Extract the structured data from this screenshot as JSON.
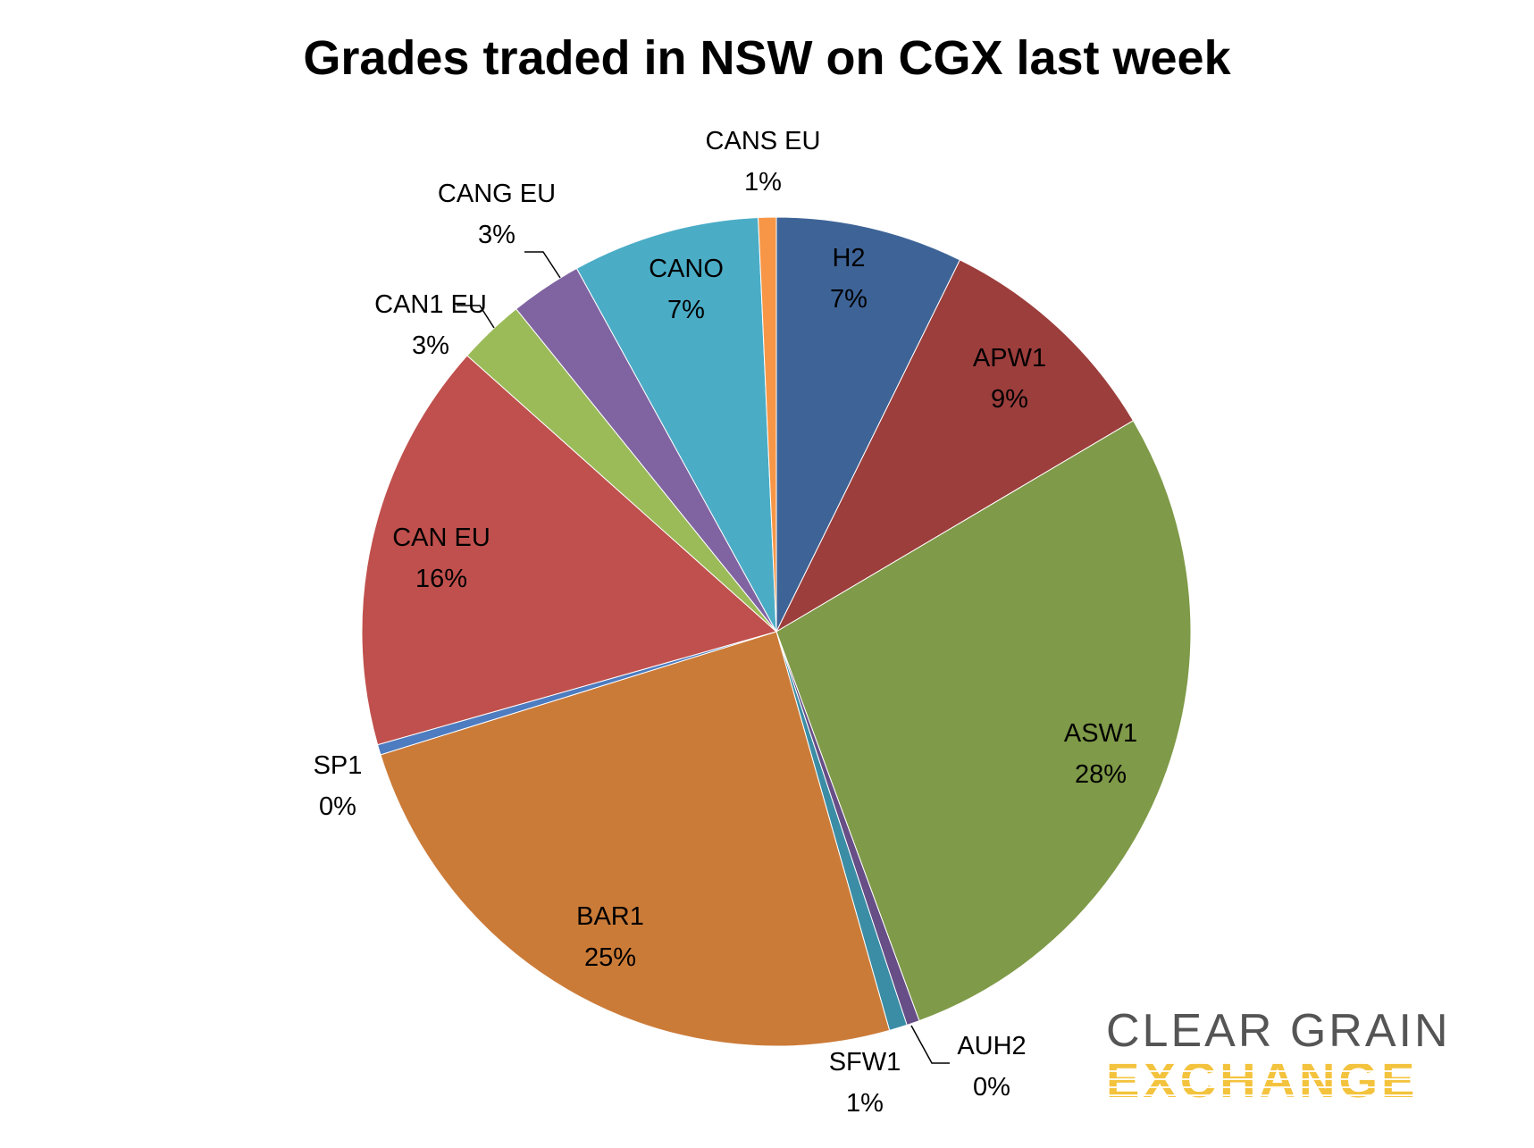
{
  "chart_data": {
    "type": "pie",
    "title": "Grades traded in NSW on CGX last week",
    "slices": [
      {
        "label": "H2",
        "value": 7.3,
        "pct_label": "7%",
        "color": "#3E6497"
      },
      {
        "label": "APW1",
        "value": 9.2,
        "pct_label": "9%",
        "color": "#9C3E3C"
      },
      {
        "label": "ASW1",
        "value": 27.9,
        "pct_label": "28%",
        "color": "#7F9A48"
      },
      {
        "label": "AUH2",
        "value": 0.5,
        "pct_label": "0%",
        "color": "#674E86"
      },
      {
        "label": "SFW1",
        "value": 0.7,
        "pct_label": "1%",
        "color": "#3A8DA5"
      },
      {
        "label": "BAR1",
        "value": 24.6,
        "pct_label": "25%",
        "color": "#CB7B38"
      },
      {
        "label": "SP1",
        "value": 0.4,
        "pct_label": "0%",
        "color": "#4D7CC0"
      },
      {
        "label": "CAN EU",
        "value": 16.0,
        "pct_label": "16%",
        "color": "#C0504D"
      },
      {
        "label": "CAN1 EU",
        "value": 2.6,
        "pct_label": "3%",
        "color": "#9BBB59"
      },
      {
        "label": "CANG EU",
        "value": 2.8,
        "pct_label": "3%",
        "color": "#8064A2"
      },
      {
        "label": "CANO",
        "value": 7.3,
        "pct_label": "7%",
        "color": "#4BACC6"
      },
      {
        "label": "CANS EU",
        "value": 0.7,
        "pct_label": "1%",
        "color": "#F79646"
      }
    ],
    "data_labels": "inside and outside with leader lines"
  },
  "logo": {
    "line1": "CLEAR GRAIN",
    "line2": "EXCHANGE",
    "colors": {
      "line1": "#555555",
      "line2": "#F4C33D"
    }
  }
}
